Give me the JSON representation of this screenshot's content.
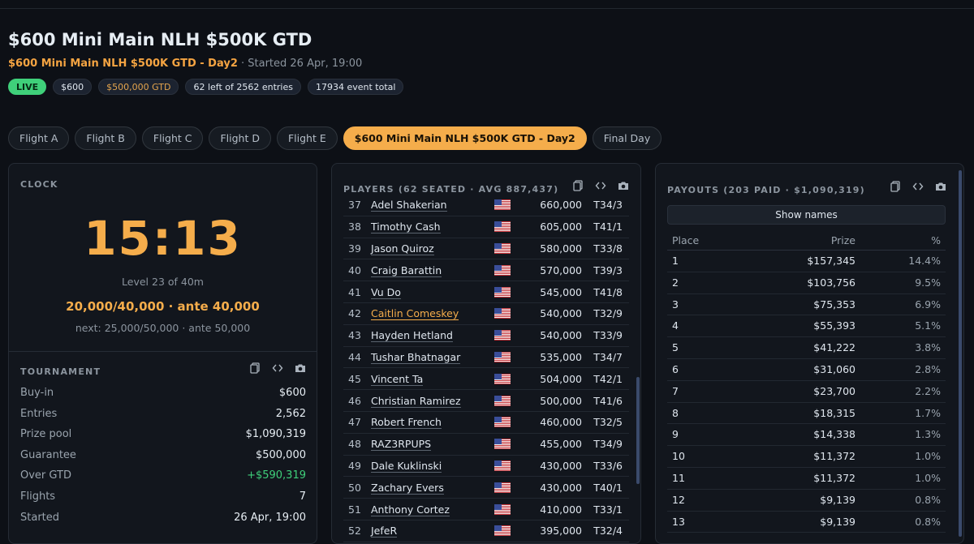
{
  "header": {
    "title": "$600 Mini Main NLH $500K GTD",
    "subtitle_event": "$600 Mini Main NLH $500K GTD - Day2",
    "subtitle_started": " · Started 26 Apr, 19:00",
    "badges": {
      "live": "LIVE",
      "buyin": "$600",
      "gtd": "$500,000 GTD",
      "left": "62 left of 2562 entries",
      "total": "17934 event total"
    }
  },
  "tabs": [
    "Flight A",
    "Flight B",
    "Flight C",
    "Flight D",
    "Flight E",
    "$600 Mini Main NLH $500K GTD - Day2",
    "Final Day"
  ],
  "clock": {
    "title": "CLOCK",
    "time": "15:13",
    "level": "Level 23 of 40m",
    "blinds": "20,000/40,000 · ante 40,000",
    "next": "next: 25,000/50,000 · ante 50,000"
  },
  "tournament": {
    "title": "TOURNAMENT",
    "rows": [
      {
        "k": "Buy-in",
        "v": "$600"
      },
      {
        "k": "Entries",
        "v": "2,562"
      },
      {
        "k": "Prize pool",
        "v": "$1,090,319"
      },
      {
        "k": "Guarantee",
        "v": "$500,000"
      },
      {
        "k": "Over GTD",
        "v": "+$590,319"
      },
      {
        "k": "Flights",
        "v": "7"
      },
      {
        "k": "Started",
        "v": "26 Apr, 19:00"
      }
    ]
  },
  "players": {
    "title": "PLAYERS (62 SEATED · AVG 887,437)",
    "rows": [
      {
        "n": "37",
        "name": "Adel Shakerian",
        "chips": "660,000",
        "table": "T34/3"
      },
      {
        "n": "38",
        "name": "Timothy Cash",
        "chips": "605,000",
        "table": "T41/1"
      },
      {
        "n": "39",
        "name": "Jason Quiroz",
        "chips": "580,000",
        "table": "T33/8"
      },
      {
        "n": "40",
        "name": "Craig Barattin",
        "chips": "570,000",
        "table": "T39/3"
      },
      {
        "n": "41",
        "name": "Vu Do",
        "chips": "545,000",
        "table": "T41/8"
      },
      {
        "n": "42",
        "name": "Caitlin Comeskey",
        "chips": "540,000",
        "table": "T32/9"
      },
      {
        "n": "43",
        "name": "Hayden Hetland",
        "chips": "540,000",
        "table": "T33/9"
      },
      {
        "n": "44",
        "name": "Tushar Bhatnagar",
        "chips": "535,000",
        "table": "T34/7"
      },
      {
        "n": "45",
        "name": "Vincent Ta",
        "chips": "504,000",
        "table": "T42/1"
      },
      {
        "n": "46",
        "name": "Christian Ramirez",
        "chips": "500,000",
        "table": "T41/6"
      },
      {
        "n": "47",
        "name": "Robert French",
        "chips": "460,000",
        "table": "T32/5"
      },
      {
        "n": "48",
        "name": "RAZ3RPUPS",
        "chips": "455,000",
        "table": "T34/9"
      },
      {
        "n": "49",
        "name": "Dale Kuklinski",
        "chips": "430,000",
        "table": "T33/6"
      },
      {
        "n": "50",
        "name": "Zachary Evers",
        "chips": "430,000",
        "table": "T40/1"
      },
      {
        "n": "51",
        "name": "Anthony Cortez",
        "chips": "410,000",
        "table": "T33/1"
      },
      {
        "n": "52",
        "name": "JefeR",
        "chips": "395,000",
        "table": "T32/4"
      }
    ]
  },
  "payouts": {
    "title": "PAYOUTS (203 PAID · $1,090,319)",
    "show_names": "Show names",
    "headers": {
      "place": "Place",
      "prize": "Prize",
      "pct": "%"
    },
    "rows": [
      {
        "place": "1",
        "prize": "$157,345",
        "pct": "14.4%"
      },
      {
        "place": "2",
        "prize": "$103,756",
        "pct": "9.5%"
      },
      {
        "place": "3",
        "prize": "$75,353",
        "pct": "6.9%"
      },
      {
        "place": "4",
        "prize": "$55,393",
        "pct": "5.1%"
      },
      {
        "place": "5",
        "prize": "$41,222",
        "pct": "3.8%"
      },
      {
        "place": "6",
        "prize": "$31,060",
        "pct": "2.8%"
      },
      {
        "place": "7",
        "prize": "$23,700",
        "pct": "2.2%"
      },
      {
        "place": "8",
        "prize": "$18,315",
        "pct": "1.7%"
      },
      {
        "place": "9",
        "prize": "$14,338",
        "pct": "1.3%"
      },
      {
        "place": "10",
        "prize": "$11,372",
        "pct": "1.0%"
      },
      {
        "place": "11",
        "prize": "$11,372",
        "pct": "1.0%"
      },
      {
        "place": "12",
        "prize": "$9,139",
        "pct": "0.8%"
      },
      {
        "place": "13",
        "prize": "$9,139",
        "pct": "0.8%"
      }
    ]
  },
  "colors": {
    "accent": "#f5ad4b",
    "live": "#3fd07a",
    "background": "#0d1016"
  },
  "icons": [
    "copy-icon",
    "code-icon",
    "camera-icon",
    "us-flag-icon"
  ]
}
